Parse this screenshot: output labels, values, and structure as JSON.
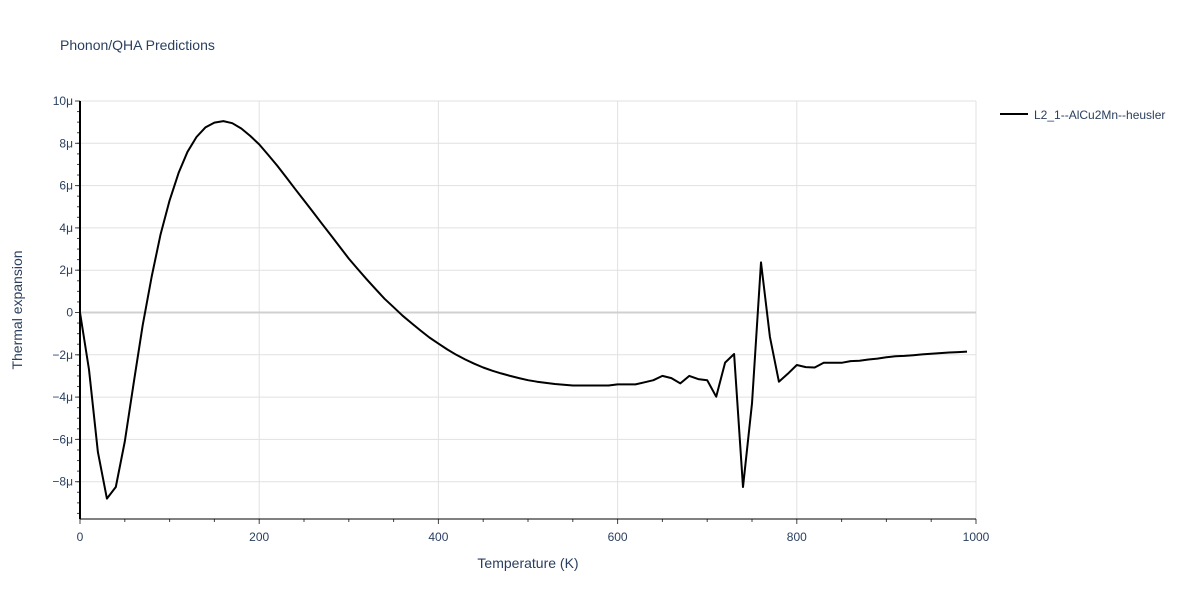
{
  "chart_data": {
    "type": "line",
    "title": "Phonon/QHA Predictions",
    "xlabel": "Temperature (K)",
    "ylabel": "Thermal expansion",
    "xlim": [
      0,
      1000
    ],
    "ylim": [
      -1e-05,
      1e-05
    ],
    "grid": true,
    "legend_placement": "top-right outside",
    "x_ticks": [
      0,
      200,
      400,
      600,
      800,
      1000
    ],
    "x_tick_labels": [
      "0",
      "200",
      "400",
      "600",
      "800",
      "1000"
    ],
    "y_ticks": [
      -8e-06,
      -6e-06,
      -4e-06,
      -2e-06,
      0,
      2e-06,
      4e-06,
      6e-06,
      8e-06,
      1e-05
    ],
    "y_tick_labels": [
      "−8μ",
      "−6μ",
      "−4μ",
      "−2μ",
      "0",
      "2μ",
      "4μ",
      "6μ",
      "8μ",
      "10μ"
    ],
    "series": [
      {
        "name": "L2_1--AlCu2Mn--heusler",
        "color": "#000000",
        "x": [
          0,
          10,
          20,
          30,
          40,
          50,
          60,
          70,
          80,
          90,
          100,
          110,
          120,
          130,
          140,
          150,
          160,
          170,
          180,
          190,
          200,
          210,
          220,
          230,
          240,
          250,
          260,
          270,
          280,
          290,
          300,
          310,
          320,
          330,
          340,
          350,
          360,
          370,
          380,
          390,
          400,
          410,
          420,
          430,
          440,
          450,
          460,
          470,
          480,
          490,
          500,
          510,
          520,
          530,
          540,
          550,
          560,
          570,
          580,
          590,
          600,
          610,
          620,
          630,
          640,
          650,
          660,
          670,
          680,
          690,
          700,
          710,
          720,
          730,
          740,
          750,
          760,
          770,
          780,
          790,
          800,
          810,
          820,
          830,
          840,
          850,
          860,
          870,
          880,
          890,
          900,
          910,
          920,
          930,
          940,
          950,
          960,
          970,
          980,
          990
        ],
        "y": [
          0,
          -2.7e-06,
          -6.6e-06,
          -8.8e-06,
          -8.25e-06,
          -6.1e-06,
          -3.3e-06,
          -6e-07,
          1.7e-06,
          3.7e-06,
          5.3e-06,
          6.6e-06,
          7.6e-06,
          8.3e-06,
          8.75e-06,
          8.98e-06,
          9.05e-06,
          8.95e-06,
          8.7e-06,
          8.35e-06,
          7.95e-06,
          7.45e-06,
          6.95e-06,
          6.4e-06,
          5.85e-06,
          5.3e-06,
          4.75e-06,
          4.2e-06,
          3.65e-06,
          3.1e-06,
          2.55e-06,
          2.05e-06,
          1.57e-06,
          1.1e-06,
          6.5e-07,
          2.5e-07,
          -1.5e-07,
          -5e-07,
          -8.5e-07,
          -1.18e-06,
          -1.47e-06,
          -1.75e-06,
          -2e-06,
          -2.22e-06,
          -2.42e-06,
          -2.6e-06,
          -2.75e-06,
          -2.88e-06,
          -3e-06,
          -3.1e-06,
          -3.2e-06,
          -3.27e-06,
          -3.33e-06,
          -3.38e-06,
          -3.42e-06,
          -3.45e-06,
          -3.45e-06,
          -3.45e-06,
          -3.45e-06,
          -3.45e-06,
          -3.4e-06,
          -3.4e-06,
          -3.4e-06,
          -3.3e-06,
          -3.2e-06,
          -3e-06,
          -3.1e-06,
          -3.35e-06,
          -3e-06,
          -3.15e-06,
          -3.2e-06,
          -3.98e-06,
          -2.37e-06,
          -1.96e-06,
          -8.25e-06,
          -4.3e-06,
          2.37e-06,
          -1.15e-06,
          -3.27e-06,
          -2.9e-06,
          -2.48e-06,
          -2.58e-06,
          -2.6e-06,
          -2.38e-06,
          -2.38e-06,
          -2.38e-06,
          -2.3e-06,
          -2.28e-06,
          -2.22e-06,
          -2.18e-06,
          -2.12e-06,
          -2.07e-06,
          -2.05e-06,
          -2.02e-06,
          -1.98e-06,
          -1.95e-06,
          -1.92e-06,
          -1.89e-06,
          -1.87e-06,
          -1.85e-06
        ]
      }
    ]
  }
}
